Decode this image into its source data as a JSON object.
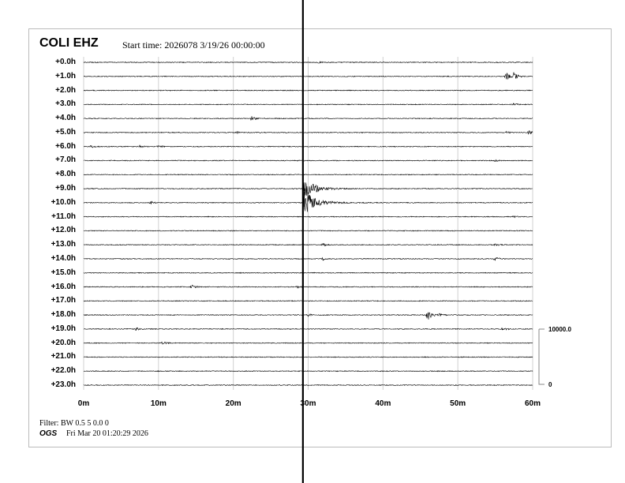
{
  "header": {
    "station": "COLI EHZ",
    "start_time": "Start time: 2026078  3/19/26 00:00:00"
  },
  "footer": {
    "filter": "Filter: BW 0.5 5 0.0 0",
    "org": "OGS",
    "generated": "Fri Mar 20 01:20:29 2026"
  },
  "chart_data": {
    "type": "line",
    "subtype": "helicorder",
    "title": "COLI EHZ",
    "row_labels": [
      "+0.0h",
      "+1.0h",
      "+2.0h",
      "+3.0h",
      "+4.0h",
      "+5.0h",
      "+6.0h",
      "+7.0h",
      "+8.0h",
      "+9.0h",
      "+10.0h",
      "+11.0h",
      "+12.0h",
      "+13.0h",
      "+14.0h",
      "+15.0h",
      "+16.0h",
      "+17.0h",
      "+18.0h",
      "+19.0h",
      "+20.0h",
      "+21.0h",
      "+22.0h",
      "+23.0h"
    ],
    "x_ticks": [
      "0m",
      "10m",
      "20m",
      "30m",
      "40m",
      "50m",
      "60m"
    ],
    "xlim": [
      0,
      60
    ],
    "grid": true,
    "trace_color": "#000000",
    "grid_color": "#d0d0d0",
    "scale_bar": {
      "top_label": "10000.0",
      "bottom_label": "0"
    },
    "events": [
      {
        "hour": 0,
        "minute": 31.5,
        "amp": 0.2
      },
      {
        "hour": 1,
        "minute": 56.5,
        "amp": 1.0
      },
      {
        "hour": 1,
        "minute": 57.5,
        "amp": 1.0
      },
      {
        "hour": 3,
        "minute": 57.5,
        "amp": 0.3
      },
      {
        "hour": 4,
        "minute": 22.5,
        "amp": 0.6
      },
      {
        "hour": 5,
        "minute": 20.5,
        "amp": 0.25
      },
      {
        "hour": 5,
        "minute": 56.5,
        "amp": 0.3
      },
      {
        "hour": 5,
        "minute": 59.5,
        "amp": 0.5
      },
      {
        "hour": 6,
        "minute": 1,
        "amp": 0.3
      },
      {
        "hour": 6,
        "minute": 7.5,
        "amp": 0.25
      },
      {
        "hour": 6,
        "minute": 10,
        "amp": 0.35
      },
      {
        "hour": 7,
        "minute": 55,
        "amp": 0.2
      },
      {
        "hour": 9,
        "minute": 29.5,
        "amp": 2.5
      },
      {
        "hour": 10,
        "minute": 29.5,
        "amp": 3.0
      },
      {
        "hour": 10,
        "minute": 9,
        "amp": 0.3
      },
      {
        "hour": 11,
        "minute": 57.5,
        "amp": 0.2
      },
      {
        "hour": 13,
        "minute": 32,
        "amp": 0.35
      },
      {
        "hour": 13,
        "minute": 55,
        "amp": 0.25
      },
      {
        "hour": 14,
        "minute": 32,
        "amp": 0.3
      },
      {
        "hour": 14,
        "minute": 55,
        "amp": 0.5
      },
      {
        "hour": 16,
        "minute": 14.5,
        "amp": 0.4
      },
      {
        "hour": 16,
        "minute": 28.5,
        "amp": 0.3
      },
      {
        "hour": 18,
        "minute": 30,
        "amp": 0.3
      },
      {
        "hour": 18,
        "minute": 46,
        "amp": 1.6
      },
      {
        "hour": 18,
        "minute": 47.5,
        "amp": 0.4
      },
      {
        "hour": 19,
        "minute": 7,
        "amp": 0.4
      },
      {
        "hour": 19,
        "minute": 56,
        "amp": 0.5
      },
      {
        "hour": 20,
        "minute": 10.5,
        "amp": 0.4
      }
    ],
    "saturated_trace_minute": 29.3
  }
}
